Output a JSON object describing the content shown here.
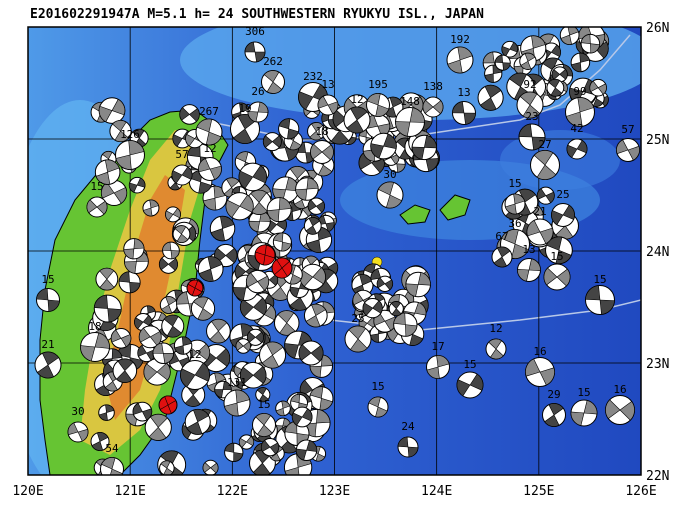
{
  "title": "E201602291947A  M=5.1  h= 24  SOUTHWESTERN RYUKYU ISL., JAPAN",
  "x_axis": {
    "labels": [
      "120E",
      "121E",
      "122E",
      "123E",
      "124E",
      "125E",
      "126E"
    ]
  },
  "y_axis": {
    "labels": [
      "26N",
      "25N",
      "24N",
      "23N",
      "22N"
    ]
  },
  "events": {
    "labels": [
      "306",
      "262",
      "192",
      "232",
      "13",
      "195",
      "12",
      "148",
      "138",
      "13",
      "92",
      "99",
      "42",
      "57",
      "267",
      "19",
      "26",
      "18",
      "23",
      "27",
      "15",
      "25",
      "21",
      "36",
      "67",
      "13",
      "15",
      "15",
      "12",
      "17",
      "15",
      "16",
      "15",
      "29",
      "15",
      "16",
      "24",
      "15",
      "131",
      "12",
      "30",
      "54",
      "21",
      "18",
      "15",
      "15",
      "25",
      "126",
      "57",
      "12",
      "30"
    ]
  }
}
